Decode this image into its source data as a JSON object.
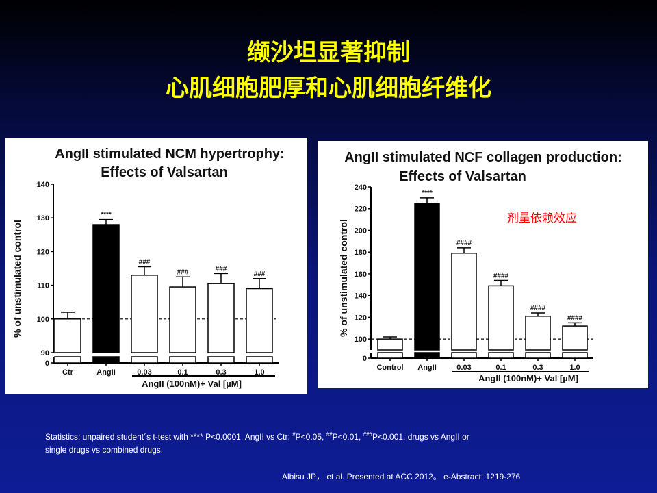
{
  "slide": {
    "title_line1": "缬沙坦显著抑制",
    "title_line2": "心肌细胞肥厚和心肌细胞纤维化",
    "stats_prefix": "Statistics: unpaired student´s t-test with **** P<0.0001, AngII vs Ctr; ",
    "stats_sig1": "#",
    "stats_text1": "P<0.05, ",
    "stats_sig2": "##",
    "stats_text2": "P<0.01, ",
    "stats_sig3": "###",
    "stats_text3": "P<0.001, drugs vs AngII or",
    "stats_line2": "single drugs  vs combined drugs.",
    "reference": "Albisu JP，  et al. Presented at ACC 2012。 e-Abstract: 1219-276"
  },
  "chart_data": [
    {
      "type": "bar",
      "title": "AngII stimulated NCM hypertrophy:",
      "subtitle": "Effects of Valsartan",
      "ylabel": "% of unstimulated control",
      "xlabel": "AngII (100nM)+ Val [µM]",
      "categories": [
        "Ctr",
        "AngII",
        "0.03",
        "0.1",
        "0.3",
        "1.0"
      ],
      "values": [
        100,
        128,
        113,
        109.5,
        110.5,
        109
      ],
      "errors": [
        2,
        1.5,
        2.5,
        3,
        3,
        3
      ],
      "fills": [
        "#ffffff",
        "#000000",
        "#ffffff",
        "#ffffff",
        "#ffffff",
        "#ffffff"
      ],
      "annotations": [
        "",
        "****",
        "###",
        "###",
        "###",
        "###"
      ],
      "y_ticks": [
        0,
        90,
        100,
        110,
        120,
        130,
        140
      ],
      "ylim": [
        90,
        140
      ],
      "axis_break": true,
      "reference_line": 100,
      "grid": false,
      "dose_note": ""
    },
    {
      "type": "bar",
      "title": "AngII stimulated NCF collagen production:",
      "subtitle": "Effects of Valsartan",
      "ylabel": "% of unstimulated control",
      "xlabel": "AngII (100nM)+ Val [µM]",
      "categories": [
        "Control",
        "AngII",
        "0.03",
        "0.1",
        "0.3",
        "1.0"
      ],
      "values": [
        100,
        225,
        179,
        149,
        121,
        112
      ],
      "errors": [
        2,
        5,
        5,
        5,
        3,
        3
      ],
      "fills": [
        "#ffffff",
        "#000000",
        "#ffffff",
        "#ffffff",
        "#ffffff",
        "#ffffff"
      ],
      "annotations": [
        "",
        "****",
        "####",
        "####",
        "####",
        "####"
      ],
      "y_ticks": [
        0,
        100,
        120,
        140,
        160,
        180,
        200,
        220,
        240
      ],
      "ylim": [
        90,
        240
      ],
      "axis_break": true,
      "reference_line": 100,
      "grid": false,
      "dose_note": "剂量依赖效应"
    }
  ]
}
